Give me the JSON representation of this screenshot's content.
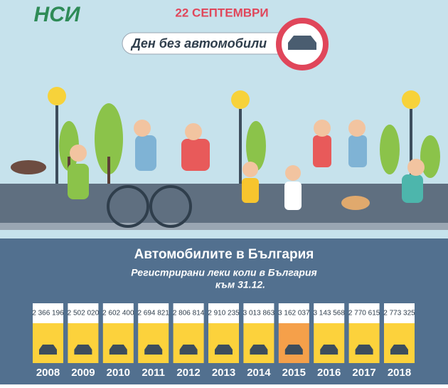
{
  "header": {
    "logo": "НСИ",
    "date": "22 СЕПТЕМВРИ",
    "banner": "Ден без автомобили"
  },
  "chart_data": {
    "type": "bar",
    "title": "Автомобилите в България",
    "subtitle": [
      "Регистрирани леки коли в България",
      "към 31.12."
    ],
    "categories": [
      "2008",
      "2009",
      "2010",
      "2011",
      "2012",
      "2013",
      "2014",
      "2015",
      "2016",
      "2017",
      "2018"
    ],
    "values": [
      2366196,
      2502020,
      2602400,
      2694821,
      2806814,
      2910235,
      3013863,
      3162037,
      3143568,
      2770615,
      2773325
    ],
    "value_labels": [
      "2 366 196",
      "2 502 020",
      "2 602 400",
      "2 694 821",
      "2 806 814",
      "2 910 235",
      "3 013 863",
      "3 162 037",
      "3 143 568",
      "2 770 615",
      "2 773 325"
    ],
    "colors": [
      "#fcd23c",
      "#fcd23c",
      "#fcd23c",
      "#fcd23c",
      "#fcd23c",
      "#fcd23c",
      "#fcd23c",
      "#f5a04a",
      "#fcd23c",
      "#fcd23c",
      "#fcd23c"
    ]
  }
}
